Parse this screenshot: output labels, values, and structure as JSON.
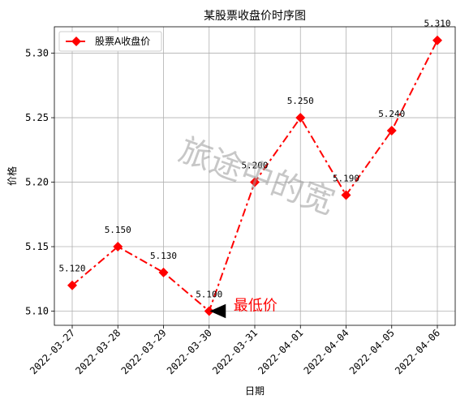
{
  "chart_data": {
    "type": "line",
    "title": "某股票收盘价时序图",
    "xlabel": "日期",
    "ylabel": "价格",
    "categories": [
      "2022-03-27",
      "2022-03-28",
      "2022-03-29",
      "2022-03-30",
      "2022-03-31",
      "2022-04-01",
      "2022-04-04",
      "2022-04-05",
      "2022-04-06"
    ],
    "series": [
      {
        "name": "股票A收盘价",
        "values": [
          5.12,
          5.15,
          5.13,
          5.1,
          5.2,
          5.25,
          5.19,
          5.24,
          5.31
        ],
        "data_labels": [
          "5.120",
          "5.150",
          "5.130",
          "5.100",
          "5.200",
          "5.250",
          "5.190",
          "5.240",
          "5.310"
        ],
        "color": "#ff0000",
        "line_style": "dash-dot",
        "marker": "diamond"
      }
    ],
    "ylim": [
      5.089,
      5.3205
    ],
    "yticks": [
      5.1,
      5.15,
      5.2,
      5.25,
      5.3
    ],
    "ytick_labels": [
      "5.10",
      "5.15",
      "5.20",
      "5.25",
      "5.30"
    ],
    "grid": true,
    "legend_placement": "top-left",
    "annotation": {
      "text": "最低价",
      "x": "2022-03-30",
      "y": 5.1,
      "color": "#ff0000"
    },
    "watermark": "旅途中的宽"
  }
}
